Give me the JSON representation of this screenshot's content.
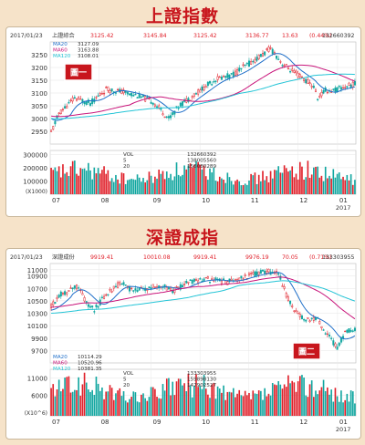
{
  "colors": {
    "up": "#e0202a",
    "down": "#11a6a0",
    "ma20": "#1f6fc9",
    "ma60": "#c8147a",
    "ma120": "#23c4d6",
    "badge": "#c8161d",
    "title": "#c8161d"
  },
  "chart_data": [
    {
      "type": "candlestick+bar",
      "title": "上證指數",
      "badge": "圖一",
      "date": "2017/01/23",
      "name": "上證綜合",
      "quote": {
        "open": "3125.42",
        "high": "3145.84",
        "low": "3125.42",
        "close": "3136.77",
        "change": "13.63",
        "pct": "(0.44%)",
        "volume": "132660392"
      },
      "ma": [
        {
          "label": "MA20",
          "value": "3127.09"
        },
        {
          "label": "MA60",
          "value": "3163.88"
        },
        {
          "label": "MA120",
          "value": "3108.01"
        }
      ],
      "ylim": [
        2900,
        3300
      ],
      "yticks": [
        2950,
        3000,
        3050,
        3100,
        3150,
        3200,
        3250
      ],
      "vol": {
        "labels": [
          {
            "label": "VOL",
            "value": "132660392"
          },
          {
            "label": "5",
            "value": "138005560"
          },
          {
            "label": "20",
            "value": "156080289"
          }
        ],
        "ylim": [
          0,
          330000
        ],
        "yticks": [
          100000,
          200000,
          300000
        ],
        "unit": "(X1000)"
      },
      "xlabels": [
        "07",
        "08",
        "09",
        "10",
        "11",
        "12",
        "01"
      ],
      "xpos": [
        0.0,
        0.16,
        0.33,
        0.49,
        0.65,
        0.81,
        0.94
      ],
      "year": "2017",
      "seed": 11,
      "anchors": [
        [
          0,
          2945
        ],
        [
          4,
          3020
        ],
        [
          12,
          3080
        ],
        [
          20,
          3060
        ],
        [
          28,
          3115
        ],
        [
          36,
          3105
        ],
        [
          44,
          3090
        ],
        [
          52,
          3065
        ],
        [
          60,
          3000
        ],
        [
          66,
          3055
        ],
        [
          76,
          3110
        ],
        [
          84,
          3155
        ],
        [
          92,
          3170
        ],
        [
          100,
          3210
        ],
        [
          106,
          3240
        ],
        [
          112,
          3275
        ],
        [
          114,
          3255
        ],
        [
          118,
          3215
        ],
        [
          124,
          3180
        ],
        [
          128,
          3160
        ],
        [
          134,
          3125
        ],
        [
          136,
          3080
        ],
        [
          140,
          3110
        ],
        [
          144,
          3110
        ],
        [
          150,
          3125
        ],
        [
          155,
          3135
        ]
      ],
      "ma_start": [
        3000,
        3010,
        3000
      ],
      "ma_spec": [
        {
          "len": 10,
          "lag": 0
        },
        {
          "len": 40,
          "lag": 15
        },
        {
          "len": 70,
          "lag": 25
        }
      ],
      "vol_base": 160000
    },
    {
      "type": "candlestick+bar",
      "title": "深證成指",
      "badge": "圖二",
      "date": "2017/01/23",
      "name": "深證成份",
      "quote": {
        "open": "9919.41",
        "high": "10010.08",
        "low": "9919.41",
        "close": "9976.19",
        "change": "70.05",
        "pct": "(0.71%)",
        "volume": "133303955"
      },
      "ma": [
        {
          "label": "MA20",
          "value": "10114.29"
        },
        {
          "label": "MA60",
          "value": "10520.96"
        },
        {
          "label": "MA120",
          "value": "10381.35"
        }
      ],
      "ylim": [
        9500,
        11100
      ],
      "yticks": [
        9700,
        9900,
        10100,
        10300,
        10500,
        10700,
        10900,
        11000
      ],
      "vol": {
        "labels": [
          {
            "label": "VOL",
            "value": "133303955"
          },
          {
            "label": "5",
            "value": "159898130"
          },
          {
            "label": "20",
            "value": "147902527"
          }
        ],
        "ylim": [
          0,
          13500
        ],
        "yticks": [
          6000,
          11000
        ],
        "unit": "(X10^6)"
      },
      "xlabels": [
        "07",
        "08",
        "09",
        "10",
        "11",
        "12",
        "01"
      ],
      "xpos": [
        0.0,
        0.16,
        0.33,
        0.49,
        0.65,
        0.81,
        0.94
      ],
      "year": "2017",
      "seed": 29,
      "anchors": [
        [
          0,
          10400
        ],
        [
          4,
          10600
        ],
        [
          8,
          10650
        ],
        [
          14,
          10750
        ],
        [
          18,
          10450
        ],
        [
          22,
          10350
        ],
        [
          28,
          10600
        ],
        [
          36,
          10800
        ],
        [
          42,
          10650
        ],
        [
          48,
          10700
        ],
        [
          56,
          10750
        ],
        [
          62,
          10650
        ],
        [
          70,
          10800
        ],
        [
          80,
          10850
        ],
        [
          90,
          10800
        ],
        [
          100,
          10900
        ],
        [
          110,
          10970
        ],
        [
          116,
          10950
        ],
        [
          120,
          10600
        ],
        [
          124,
          10350
        ],
        [
          130,
          10200
        ],
        [
          136,
          10200
        ],
        [
          140,
          10000
        ],
        [
          146,
          9750
        ],
        [
          150,
          10000
        ],
        [
          155,
          10050
        ]
      ],
      "ma_start": [
        10350,
        10400,
        10300
      ],
      "ma_spec": [
        {
          "len": 10,
          "lag": 0
        },
        {
          "len": 40,
          "lag": 15
        },
        {
          "len": 70,
          "lag": 25
        }
      ],
      "vol_base": 7800
    }
  ]
}
